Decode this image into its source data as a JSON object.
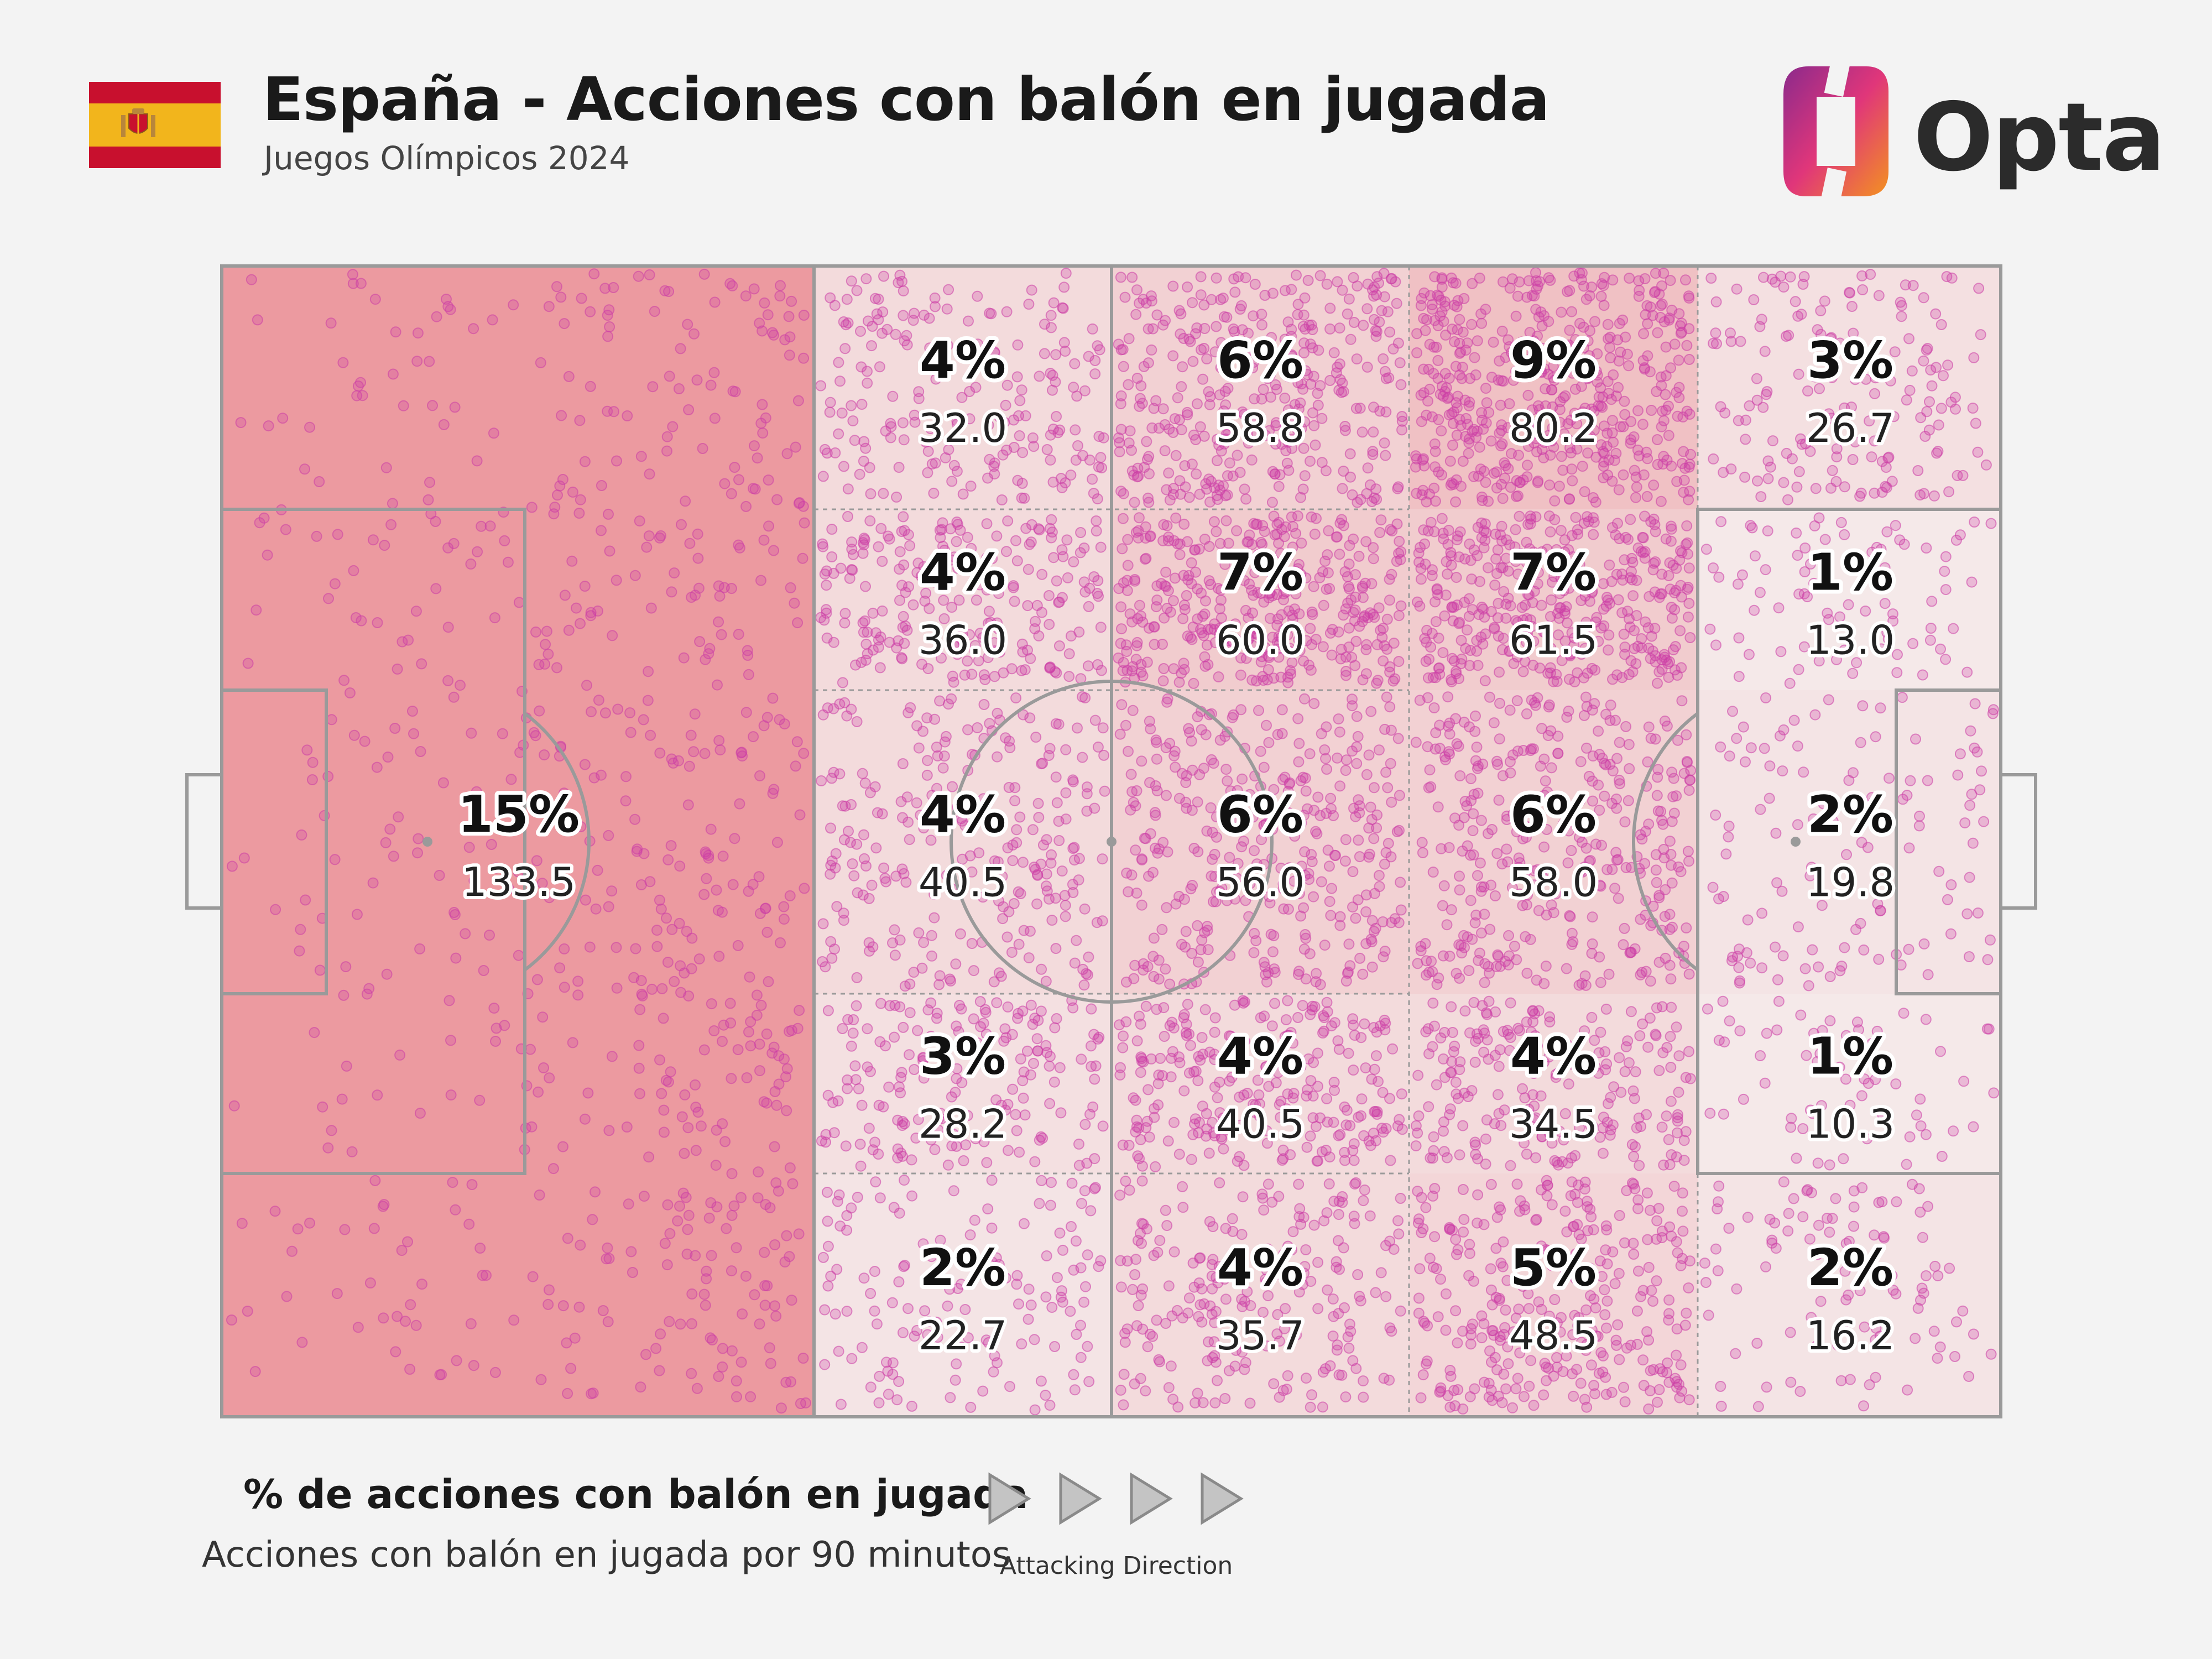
{
  "header": {
    "title": "España - Acciones con balón en jugada",
    "subtitle": "Juegos Olímpicos 2024",
    "brand": "Opta"
  },
  "colors": {
    "flag_red": "#c8102e",
    "flag_yellow": "#f2b51c",
    "dot": "#cc3ea6",
    "heat_high": "#ec9aa0",
    "heat_low": "#f5ecec",
    "logo_orange": "#f39220",
    "logo_purple": "#8b2a8c"
  },
  "chart_data": {
    "type": "heatmap",
    "title": "España - Acciones con balón en jugada",
    "subtitle": "Juegos Olímpicos 2024",
    "columns": 6,
    "rows": 5,
    "zones": [
      {
        "id": "z1",
        "pct": "15%",
        "value": "133.5",
        "share": 15
      },
      {
        "id": "z-c2-r1",
        "pct": "4%",
        "value": "32.0",
        "share": 4
      },
      {
        "id": "z-c2-r2",
        "pct": "4%",
        "value": "36.0",
        "share": 4
      },
      {
        "id": "z-c2-r3",
        "pct": "4%",
        "value": "40.5",
        "share": 4
      },
      {
        "id": "z-c2-r4",
        "pct": "3%",
        "value": "28.2",
        "share": 3
      },
      {
        "id": "z-c2-r5",
        "pct": "2%",
        "value": "22.7",
        "share": 2
      },
      {
        "id": "z-c3-r1",
        "pct": "6%",
        "value": "58.8",
        "share": 6
      },
      {
        "id": "z-c3-r2",
        "pct": "7%",
        "value": "60.0",
        "share": 7
      },
      {
        "id": "z-c3-r3",
        "pct": "6%",
        "value": "56.0",
        "share": 6
      },
      {
        "id": "z-c3-r4",
        "pct": "4%",
        "value": "40.5",
        "share": 4
      },
      {
        "id": "z-c3-r5",
        "pct": "4%",
        "value": "35.7",
        "share": 4
      },
      {
        "id": "z-c4-r1",
        "pct": "9%",
        "value": "80.2",
        "share": 9
      },
      {
        "id": "z-c4-r2",
        "pct": "7%",
        "value": "61.5",
        "share": 7
      },
      {
        "id": "z-c4-r3",
        "pct": "6%",
        "value": "58.0",
        "share": 6
      },
      {
        "id": "z-c4-r4",
        "pct": "4%",
        "value": "34.5",
        "share": 4
      },
      {
        "id": "z-c4-r5",
        "pct": "5%",
        "value": "48.5",
        "share": 5
      },
      {
        "id": "z-c5-r1",
        "pct": "3%",
        "value": "26.7",
        "share": 3
      },
      {
        "id": "z-c5-r2",
        "pct": "1%",
        "value": "13.0",
        "share": 1
      },
      {
        "id": "z-c5-r3",
        "pct": "2%",
        "value": "19.8",
        "share": 2
      },
      {
        "id": "z-c5-r4",
        "pct": "1%",
        "value": "10.3",
        "share": 1
      },
      {
        "id": "z-c5-r5",
        "pct": "2%",
        "value": "16.2",
        "share": 2
      }
    ],
    "legend_title": "% de acciones con balón en jugada",
    "legend_subtitle": "Acciones con balón en jugada por 90 minutos",
    "direction_label": "Attacking Direction"
  }
}
